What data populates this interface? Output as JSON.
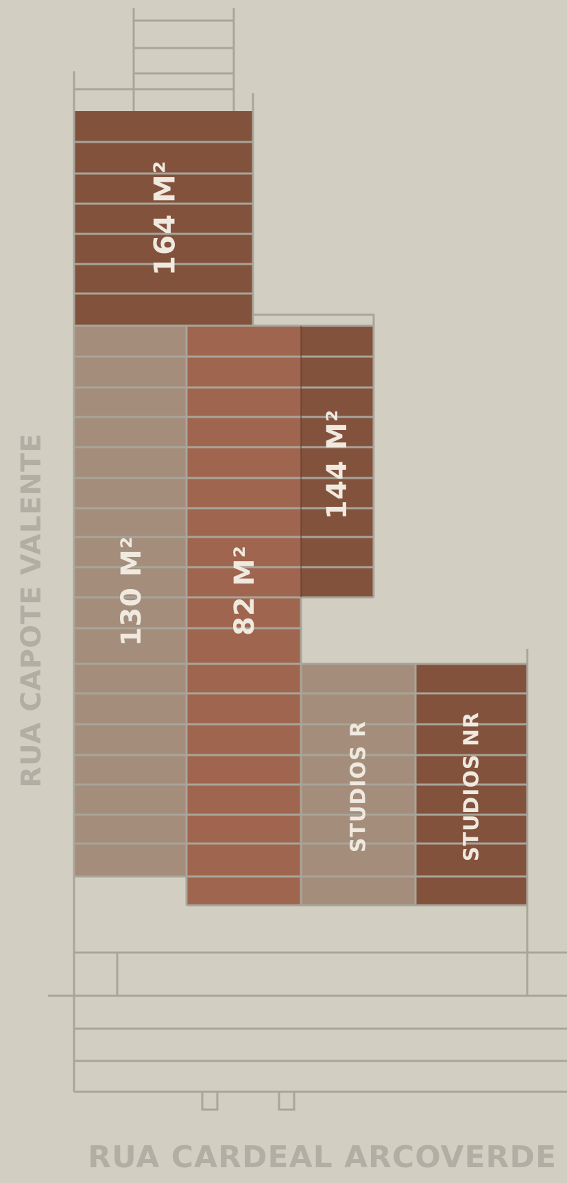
{
  "colors": {
    "background": "#d2cfc2",
    "line": "#a8a59a",
    "dark_brown": "#82523d",
    "terracotta": "#a0654e",
    "taupe": "#a58d7b",
    "label": "#efe9df",
    "street": "#b1aea4"
  },
  "streets": {
    "left": "RUA CAPOTE VALENTE",
    "bottom": "RUA CARDEAL ARCOVERDE"
  },
  "units": [
    {
      "id": "unit-164",
      "label": "164 M²",
      "color": "dark_brown"
    },
    {
      "id": "unit-130",
      "label": "130 M²",
      "color": "taupe"
    },
    {
      "id": "unit-82",
      "label": "82 M²",
      "color": "terracotta"
    },
    {
      "id": "unit-144",
      "label": "144 M²",
      "color": "dark_brown"
    },
    {
      "id": "studios-r",
      "label": "STUDIOS R",
      "color": "taupe"
    },
    {
      "id": "studios-nr",
      "label": "STUDIOS NR",
      "color": "dark_brown"
    }
  ]
}
